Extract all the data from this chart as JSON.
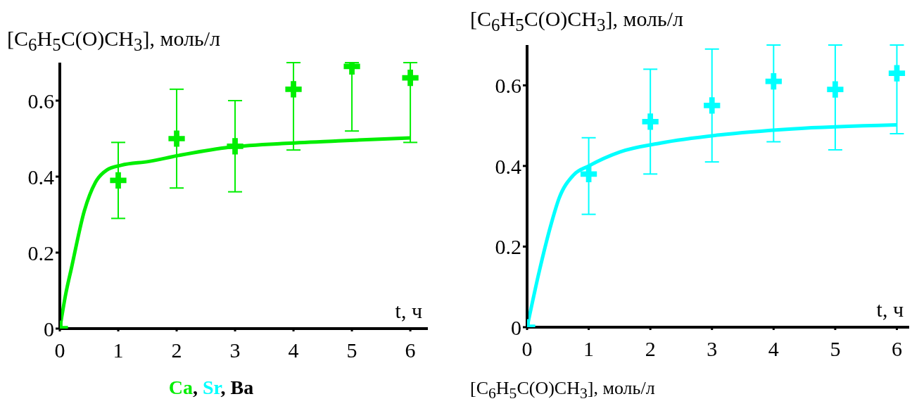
{
  "chart_data": [
    {
      "type": "scatter",
      "ylabel": "[C$_{6}$H$_{5}$C(O)CH$_{3}$], моль/л",
      "xlabel": "t, ч",
      "xlim": [
        0,
        6.3
      ],
      "xticks": [
        0,
        1,
        2,
        3,
        4,
        5,
        6
      ],
      "ylim": [
        0,
        0.7
      ],
      "yticks": [
        0,
        0.2,
        0.4,
        0.6
      ],
      "annotations": [
        "Ca, Sr, Ba"
      ],
      "series": [
        {
          "marker": "cross",
          "color": "#00ee00",
          "x": [
            0,
            1,
            2,
            3,
            4,
            5,
            6
          ],
          "values": [
            0,
            0.39,
            0.5,
            0.48,
            0.63,
            0.69,
            0.66
          ],
          "errors": [
            null,
            [
              0.29,
              0.49
            ],
            [
              0.37,
              0.63
            ],
            [
              0.36,
              0.6
            ],
            [
              0.47,
              0.7
            ],
            [
              0.52,
              0.7
            ],
            [
              0.49,
              0.7
            ]
          ]
        },
        {
          "type": "line",
          "color": "#00ee00",
          "x": [
            0,
            0.1,
            0.2,
            0.42,
            0.61,
            0.81,
            1.05,
            1.53,
            2.01,
            2.83,
            3.8,
            4.76,
            6
          ],
          "values": [
            0,
            0.09,
            0.16,
            0.31,
            0.385,
            0.418,
            0.43,
            0.44,
            0.455,
            0.476,
            0.487,
            0.494,
            0.502
          ]
        }
      ]
    },
    {
      "type": "scatter",
      "ylabel": "[C$_{6}$H$_{5}$C(O)CH$_{3}$], моль/л",
      "xlabel": "t, ч",
      "xlim": [
        0,
        6.2
      ],
      "xticks": [
        0,
        1,
        2,
        3,
        4,
        5,
        6
      ],
      "ylim": [
        0,
        0.7
      ],
      "yticks": [
        0,
        0.2,
        0.4,
        0.6
      ],
      "annotations": [
        "[C$_{6}$H$_{5}$C(O)CH$_{3}$], моль/л"
      ],
      "series": [
        {
          "marker": "cross",
          "color": "#00ffff",
          "x": [
            0,
            1,
            2,
            3,
            4,
            5,
            6
          ],
          "values": [
            0,
            0.38,
            0.51,
            0.55,
            0.61,
            0.59,
            0.63
          ],
          "errors": [
            null,
            [
              0.28,
              0.47
            ],
            [
              0.38,
              0.64
            ],
            [
              0.41,
              0.69
            ],
            [
              0.46,
              0.7
            ],
            [
              0.44,
              0.7
            ],
            [
              0.48,
              0.7
            ]
          ]
        },
        {
          "type": "line",
          "color": "#00ffff",
          "x": [
            0,
            0.2,
            0.38,
            0.52,
            0.75,
            1.0,
            1.51,
            2.17,
            3.12,
            4.3,
            6
          ],
          "values": [
            0,
            0.14,
            0.25,
            0.32,
            0.377,
            0.4,
            0.435,
            0.457,
            0.477,
            0.492,
            0.502
          ]
        }
      ]
    }
  ]
}
